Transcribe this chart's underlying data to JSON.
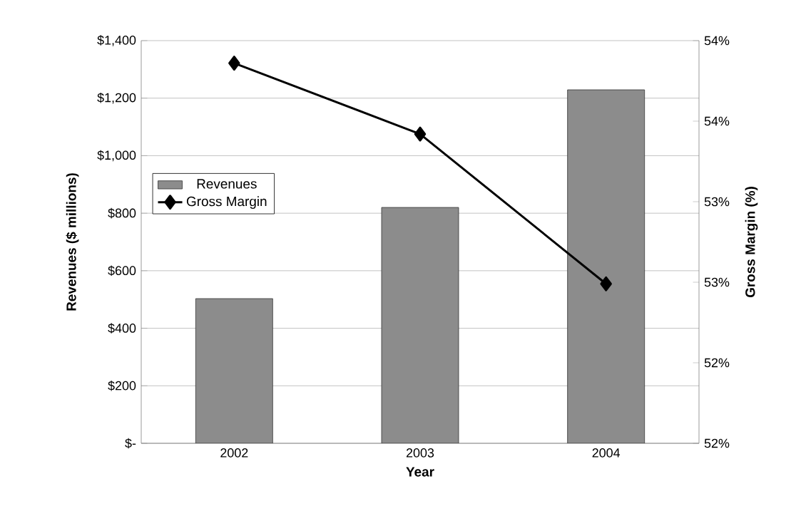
{
  "chart_data": {
    "type": "bar",
    "xlabel": "Year",
    "ylabel": "Revenues ($ millions)",
    "y2label": "Gross Margin (%)",
    "categories": [
      "2002",
      "2003",
      "2004"
    ],
    "series": [
      {
        "name": "Revenues",
        "color": "#8c8c8c",
        "values": [
          503,
          820,
          1229
        ]
      },
      {
        "name": "Gross Margin",
        "type": "line",
        "axis": "y2",
        "color": "#000000",
        "values": [
          53.86,
          53.42,
          52.49
        ]
      }
    ],
    "ylim": [
      0,
      1400
    ],
    "yticks": [
      {
        "value": 0,
        "label": "$-"
      },
      {
        "value": 200,
        "label": "$200"
      },
      {
        "value": 400,
        "label": "$400"
      },
      {
        "value": 600,
        "label": "$600"
      },
      {
        "value": 800,
        "label": "$800"
      },
      {
        "value": 1000,
        "label": "$1,000"
      },
      {
        "value": 1200,
        "label": "$1,200"
      },
      {
        "value": 1400,
        "label": "$1,400"
      }
    ],
    "y2lim": [
      51.5,
      54
    ],
    "y2ticks": [
      {
        "value": 51.5,
        "label": "52%"
      },
      {
        "value": 52,
        "label": "52%"
      },
      {
        "value": 52.5,
        "label": "53%"
      },
      {
        "value": 53,
        "label": "53%"
      },
      {
        "value": 53.5,
        "label": "54%"
      },
      {
        "value": 54,
        "label": "54%"
      }
    ],
    "grid": "y",
    "legend": "left",
    "marker": "diamond",
    "line_style": "solid"
  }
}
